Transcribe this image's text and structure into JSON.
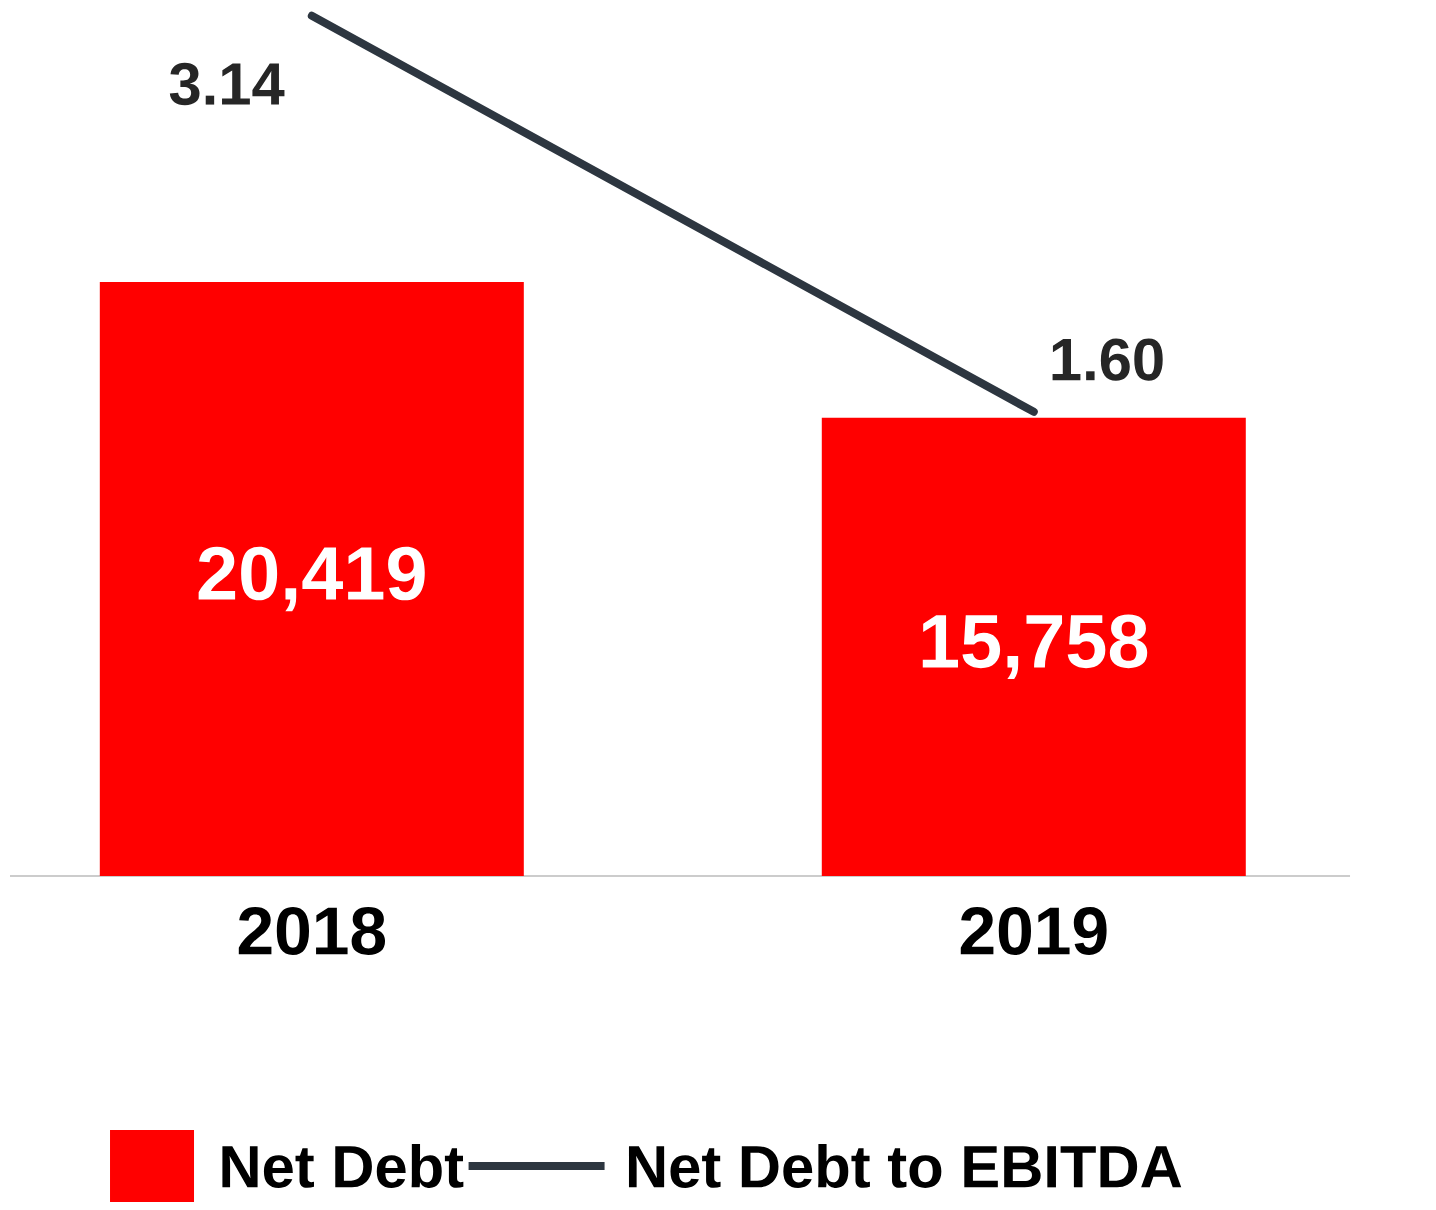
{
  "chart_data": {
    "type": "bar",
    "categories": [
      "2018",
      "2019"
    ],
    "series": [
      {
        "name": "Net Debt",
        "color": "#ff0000",
        "values": [
          20419,
          15758
        ],
        "value_labels": [
          "20,419",
          "15,758"
        ]
      },
      {
        "name": "Net Debt to EBITDA",
        "type": "line",
        "axis": "y2",
        "color": "#2d3640",
        "values": [
          3.14,
          1.6
        ],
        "value_labels": [
          "3.14",
          "1.60"
        ]
      }
    ],
    "tick_labels": "x",
    "legend": "bottom"
  }
}
